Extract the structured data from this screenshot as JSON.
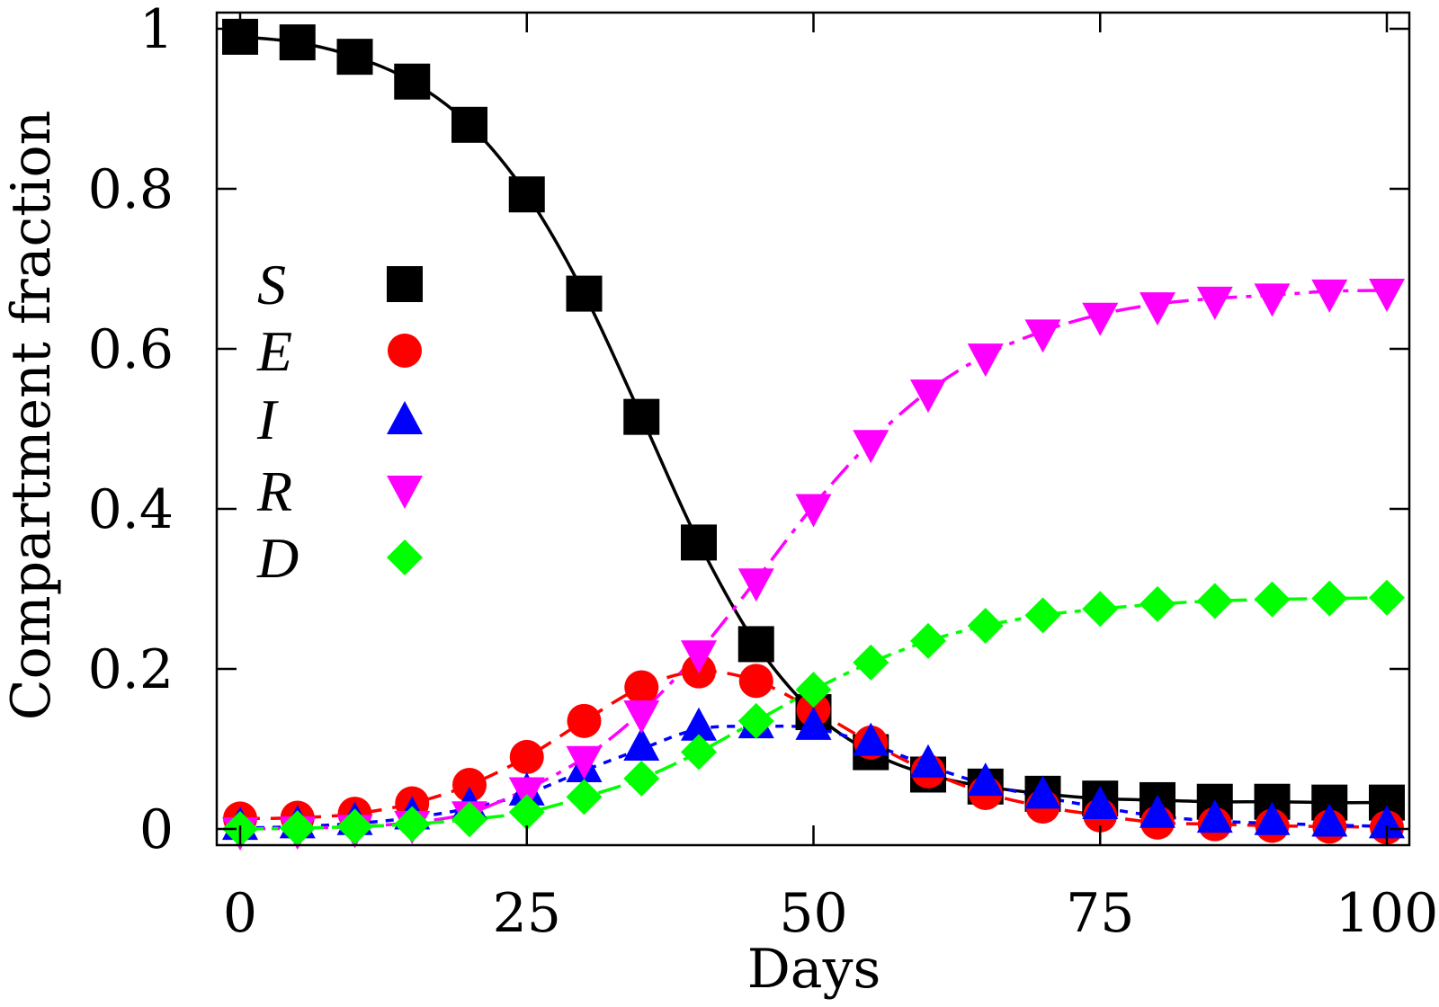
{
  "chart_data": {
    "type": "line",
    "title": "",
    "xlabel": "Days",
    "ylabel": "Compartment fraction",
    "xlim": [
      0,
      100
    ],
    "ylim": [
      0,
      1
    ],
    "xticks": [
      0,
      25,
      50,
      75,
      100
    ],
    "xtick_labels": [
      "0",
      "25",
      "50",
      "75",
      "100"
    ],
    "yticks": [
      0,
      0.2,
      0.4,
      0.6,
      0.8,
      1
    ],
    "ytick_labels": [
      "0",
      "0.2",
      "0.4",
      "0.6",
      "0.8",
      "1"
    ],
    "grid": false,
    "legend_position": "middle-left",
    "x": [
      0,
      5,
      10,
      15,
      20,
      25,
      30,
      35,
      40,
      45,
      50,
      55,
      60,
      65,
      70,
      75,
      80,
      85,
      90,
      95,
      100
    ],
    "series": [
      {
        "name": "S",
        "color": "#000000",
        "marker": "square",
        "line": "solid",
        "values": [
          0.99,
          0.983,
          0.965,
          0.934,
          0.88,
          0.793,
          0.669,
          0.515,
          0.358,
          0.231,
          0.146,
          0.096,
          0.068,
          0.053,
          0.044,
          0.038,
          0.036,
          0.034,
          0.034,
          0.033,
          0.033
        ]
      },
      {
        "name": "E",
        "color": "#ff0000",
        "marker": "circle",
        "line": "dashed",
        "values": [
          0.013,
          0.014,
          0.019,
          0.032,
          0.055,
          0.09,
          0.135,
          0.177,
          0.197,
          0.185,
          0.149,
          0.108,
          0.072,
          0.045,
          0.028,
          0.017,
          0.008,
          0.006,
          0.004,
          0.003,
          0.002
        ]
      },
      {
        "name": "I",
        "color": "#0000ff",
        "marker": "triangle-up",
        "line": "dotted",
        "values": [
          0.001,
          0.003,
          0.007,
          0.014,
          0.026,
          0.044,
          0.073,
          0.1,
          0.125,
          0.128,
          0.126,
          0.106,
          0.079,
          0.056,
          0.04,
          0.027,
          0.016,
          0.01,
          0.007,
          0.005,
          0.003
        ]
      },
      {
        "name": "R",
        "color": "#ff00ff",
        "marker": "triangle-down",
        "line": "dash-dot",
        "values": [
          0.0,
          0.001,
          0.003,
          0.008,
          0.02,
          0.05,
          0.089,
          0.146,
          0.221,
          0.311,
          0.404,
          0.484,
          0.547,
          0.592,
          0.622,
          0.643,
          0.656,
          0.663,
          0.667,
          0.672,
          0.673
        ]
      },
      {
        "name": "D",
        "color": "#00ff00",
        "marker": "diamond",
        "line": "dash-dot-dot",
        "values": [
          0.0,
          0.001,
          0.003,
          0.006,
          0.012,
          0.021,
          0.04,
          0.063,
          0.096,
          0.135,
          0.174,
          0.208,
          0.235,
          0.254,
          0.267,
          0.275,
          0.281,
          0.285,
          0.287,
          0.288,
          0.289
        ]
      }
    ]
  }
}
